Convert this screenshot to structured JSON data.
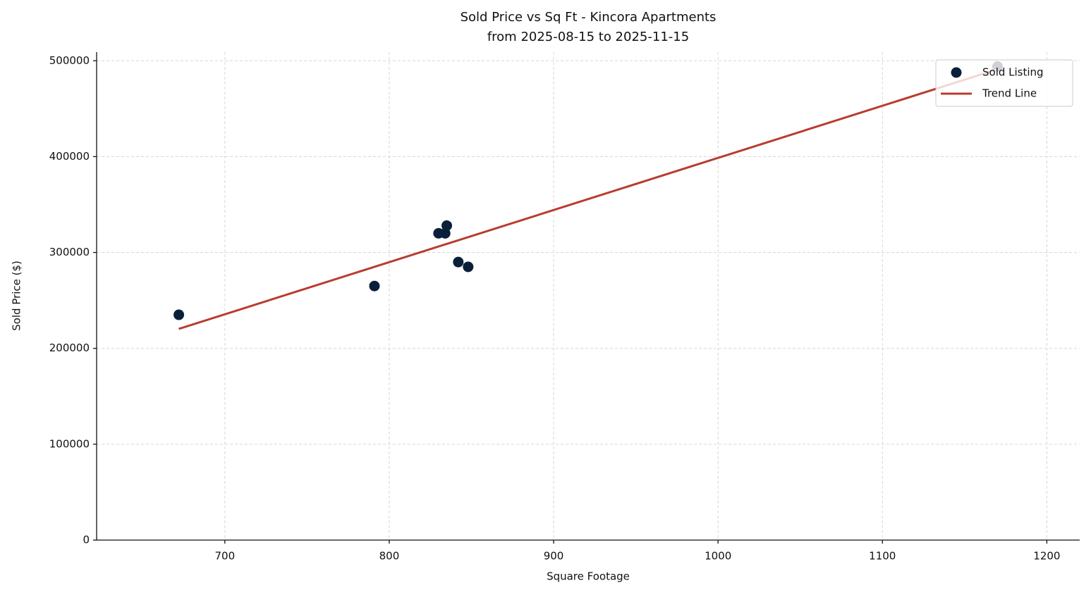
{
  "chart_data": {
    "type": "scatter",
    "title": "Sold Price vs Sq Ft - Kincora Apartments",
    "subtitle": "from 2025-08-15 to 2025-11-15",
    "x_label": "Square Footage",
    "y_label": "Sold Price ($)",
    "series": [
      {
        "name": "Sold Listing",
        "type": "scatter",
        "color": "#0a1f3a",
        "x": [
          672,
          791,
          830,
          834,
          835,
          842,
          848,
          1170
        ],
        "values": [
          235000,
          265000,
          320000,
          320000,
          328000,
          290000,
          285000,
          494000
        ]
      },
      {
        "name": "Trend Line",
        "type": "line",
        "color": "#b83c30",
        "x": [
          672,
          1170
        ],
        "values": [
          220300,
          491100
        ]
      }
    ],
    "xlim": [
      622,
      1220
    ],
    "xticks": [
      700,
      800,
      900,
      1000,
      1100,
      1200
    ],
    "ylim": [
      0,
      509000
    ],
    "yticks": [
      0,
      100000,
      200000,
      300000,
      400000,
      500000
    ],
    "grid": true,
    "legend": "upper right"
  }
}
